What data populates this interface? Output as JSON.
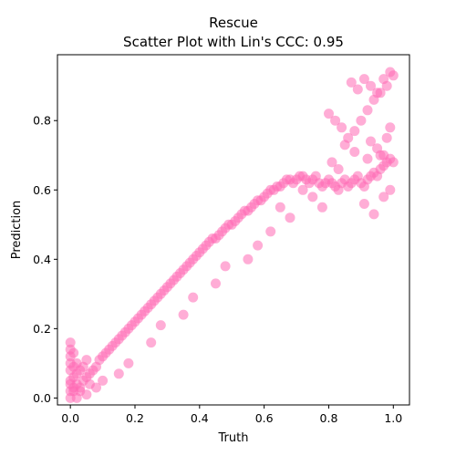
{
  "chart_data": {
    "type": "scatter",
    "title": "Rescue",
    "subtitle": "Scatter Plot with Lin's CCC: 0.95",
    "xlabel": "Truth",
    "ylabel": "Prediction",
    "xlim": [
      -0.04,
      1.05
    ],
    "ylim": [
      -0.02,
      0.99
    ],
    "xticks": [
      "0.0",
      "0.2",
      "0.4",
      "0.6",
      "0.8",
      "1.0"
    ],
    "yticks": [
      "0.0",
      "0.2",
      "0.4",
      "0.6",
      "0.8"
    ],
    "grid": false,
    "point_color": "#ff69b4",
    "point_alpha": 0.55,
    "series": [
      {
        "x": [
          0.0,
          0.0,
          0.0,
          0.0,
          0.0,
          0.0,
          0.01,
          0.01,
          0.01,
          0.01,
          0.02,
          0.02,
          0.02,
          0.03,
          0.03,
          0.04,
          0.04,
          0.05,
          0.05,
          0.06,
          0.07,
          0.08,
          0.09,
          0.1,
          0.11,
          0.12,
          0.13,
          0.14,
          0.15,
          0.16,
          0.17,
          0.18,
          0.19,
          0.2,
          0.21,
          0.22,
          0.23,
          0.24,
          0.25,
          0.26,
          0.27,
          0.28,
          0.29,
          0.3,
          0.31,
          0.32,
          0.33,
          0.34,
          0.35,
          0.36,
          0.37,
          0.38,
          0.39,
          0.4,
          0.41,
          0.42,
          0.43,
          0.44,
          0.45,
          0.46,
          0.47,
          0.48,
          0.49,
          0.5,
          0.51,
          0.52,
          0.53,
          0.54,
          0.55,
          0.56,
          0.57,
          0.58,
          0.59,
          0.6,
          0.61,
          0.62,
          0.63,
          0.64,
          0.65,
          0.66,
          0.67,
          0.68,
          0.69,
          0.7,
          0.71,
          0.72,
          0.73,
          0.74,
          0.75,
          0.76,
          0.77,
          0.78,
          0.79,
          0.8,
          0.81,
          0.82,
          0.83,
          0.84,
          0.85,
          0.86,
          0.87,
          0.88,
          0.89,
          0.9,
          0.91,
          0.92,
          0.93,
          0.94,
          0.95,
          0.96,
          0.97,
          0.98,
          0.99,
          1.0,
          0.8,
          0.82,
          0.84,
          0.86,
          0.88,
          0.9,
          0.92,
          0.94,
          0.96,
          0.98,
          1.0,
          0.87,
          0.89,
          0.91,
          0.93,
          0.95,
          0.97,
          0.99,
          0.85,
          0.88,
          0.92,
          0.96,
          0.83,
          0.81,
          0.72,
          0.75,
          0.78,
          0.65,
          0.68,
          0.93,
          0.95,
          0.97,
          0.99,
          0.98,
          0.91,
          0.94,
          0.97,
          0.99,
          0.55,
          0.58,
          0.62,
          0.45,
          0.48,
          0.35,
          0.38,
          0.25,
          0.28,
          0.15,
          0.18,
          0.08,
          0.1,
          0.02,
          0.03,
          0.05,
          0.06,
          0.01,
          0.0,
          0.0,
          0.0
        ],
        "y": [
          0.16,
          0.14,
          0.12,
          0.1,
          0.08,
          0.05,
          0.02,
          0.06,
          0.09,
          0.13,
          0.04,
          0.07,
          0.1,
          0.03,
          0.08,
          0.05,
          0.09,
          0.06,
          0.11,
          0.07,
          0.08,
          0.09,
          0.11,
          0.12,
          0.13,
          0.14,
          0.15,
          0.16,
          0.17,
          0.18,
          0.19,
          0.2,
          0.21,
          0.22,
          0.23,
          0.24,
          0.25,
          0.26,
          0.27,
          0.28,
          0.29,
          0.3,
          0.31,
          0.32,
          0.33,
          0.34,
          0.35,
          0.36,
          0.37,
          0.38,
          0.39,
          0.4,
          0.41,
          0.42,
          0.43,
          0.44,
          0.45,
          0.46,
          0.46,
          0.47,
          0.48,
          0.49,
          0.5,
          0.5,
          0.51,
          0.52,
          0.53,
          0.54,
          0.54,
          0.55,
          0.56,
          0.57,
          0.57,
          0.58,
          0.59,
          0.6,
          0.6,
          0.61,
          0.61,
          0.62,
          0.63,
          0.63,
          0.62,
          0.63,
          0.64,
          0.64,
          0.63,
          0.62,
          0.63,
          0.64,
          0.62,
          0.61,
          0.62,
          0.63,
          0.62,
          0.61,
          0.6,
          0.62,
          0.63,
          0.61,
          0.62,
          0.63,
          0.64,
          0.62,
          0.61,
          0.63,
          0.64,
          0.65,
          0.64,
          0.66,
          0.67,
          0.68,
          0.69,
          0.68,
          0.82,
          0.8,
          0.78,
          0.75,
          0.77,
          0.8,
          0.83,
          0.86,
          0.88,
          0.9,
          0.93,
          0.91,
          0.89,
          0.92,
          0.9,
          0.88,
          0.92,
          0.94,
          0.73,
          0.71,
          0.69,
          0.7,
          0.66,
          0.68,
          0.6,
          0.58,
          0.55,
          0.55,
          0.52,
          0.74,
          0.72,
          0.7,
          0.78,
          0.75,
          0.56,
          0.53,
          0.58,
          0.6,
          0.4,
          0.44,
          0.48,
          0.33,
          0.38,
          0.24,
          0.29,
          0.16,
          0.21,
          0.07,
          0.1,
          0.03,
          0.05,
          0.0,
          0.02,
          0.01,
          0.04,
          0.03,
          0.0,
          0.02,
          0.04
        ]
      }
    ]
  }
}
